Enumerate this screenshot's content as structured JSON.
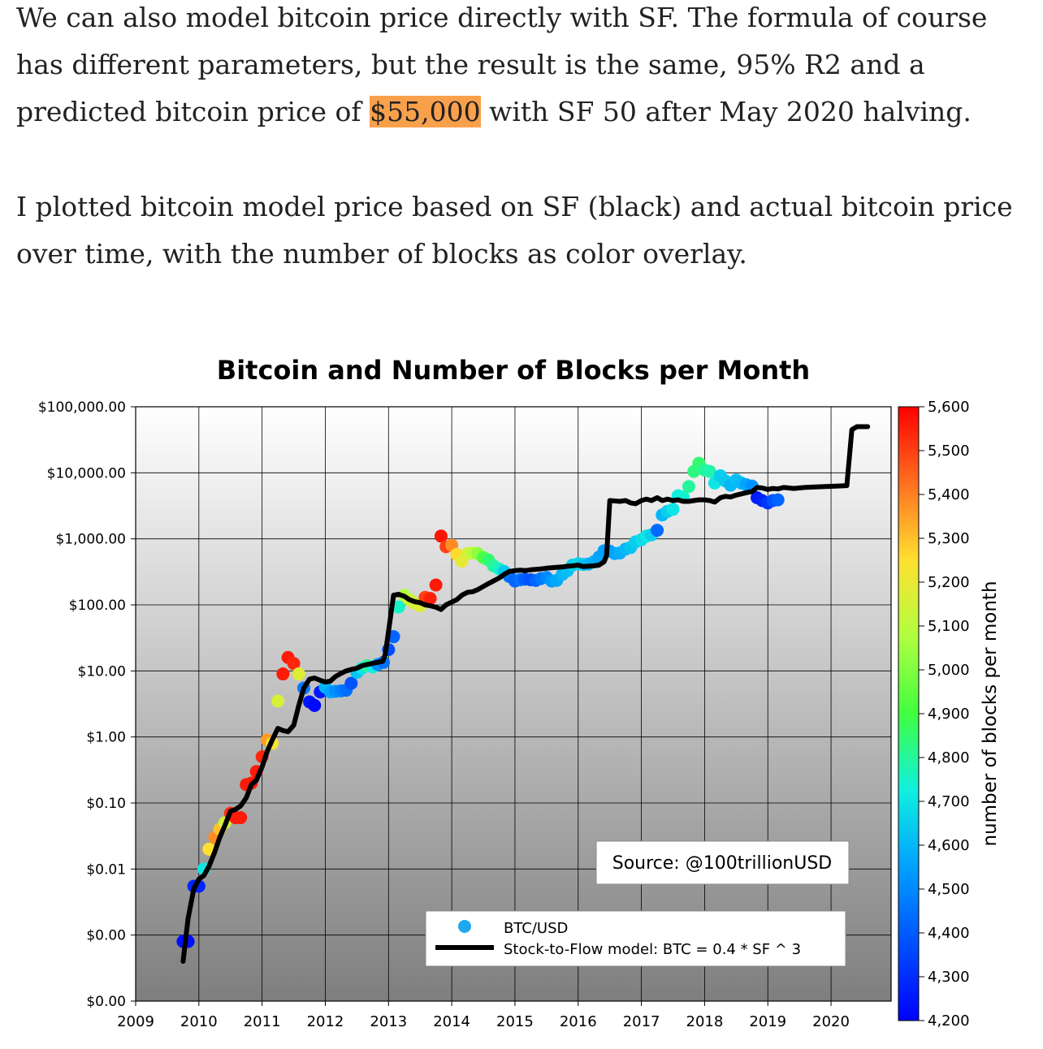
{
  "article": {
    "p1_before": "We can also model bitcoin price directly with SF. The formula of course has different parameters, but the result is the same, 95% R2 and a predicted bitcoin price of ",
    "p1_highlight": "$55,000",
    "p1_after": " with SF 50 after May 2020 halving.",
    "p2": "I plotted bitcoin model price based on SF (black) and actual bitcoin price over time, with the number of blocks as color overlay.",
    "highlight_color": "#f9a04b"
  },
  "chart_data": {
    "type": "scatter",
    "title": "Bitcoin and Number of Blocks per Month",
    "xlabel": "",
    "ylabel": "",
    "y_scale": "log",
    "ylim": [
      0.0001,
      100000
    ],
    "xlim": [
      2009,
      2020.95
    ],
    "x_ticks": [
      2009,
      2010,
      2011,
      2012,
      2013,
      2014,
      2015,
      2016,
      2017,
      2018,
      2019,
      2020
    ],
    "x_tick_labels": [
      "2009",
      "2010",
      "2011",
      "2012",
      "2013",
      "2014",
      "2015",
      "2016",
      "2017",
      "2018",
      "2019",
      "2020"
    ],
    "y_ticks": [
      0.0001,
      0.001,
      0.01,
      0.1,
      1,
      10,
      100,
      1000,
      10000,
      100000
    ],
    "y_tick_labels": [
      "$0.00",
      "$0.00",
      "$0.01",
      "$0.10",
      "$1.00",
      "$10.00",
      "$100.00",
      "$1,000.00",
      "$10,000.00",
      "$100,000.00"
    ],
    "grid": true,
    "legend_position": "bottom-right",
    "annotation": "Source: @100trillionUSD",
    "colorbar": {
      "label": "number of blocks per month",
      "range": [
        4200,
        5600
      ],
      "ticks": [
        4200,
        4300,
        4400,
        4500,
        4600,
        4700,
        4800,
        4900,
        5000,
        5100,
        5200,
        5300,
        5400,
        5500,
        5600
      ],
      "tick_labels": [
        "4,200",
        "4,300",
        "4,400",
        "4,500",
        "4,600",
        "4,700",
        "4,800",
        "4,900",
        "5,000",
        "5,100",
        "5,200",
        "5,300",
        "5,400",
        "5,500",
        "5,600"
      ],
      "colormap": "jet"
    },
    "series": [
      {
        "name": "BTC/USD",
        "marker": "circle",
        "legend_color": "#1fa8f0",
        "points": [
          {
            "x": 2009.75,
            "y": 0.0008,
            "c": 4230
          },
          {
            "x": 2009.83,
            "y": 0.0008,
            "c": 4230
          },
          {
            "x": 2009.92,
            "y": 0.0055,
            "c": 4280
          },
          {
            "x": 2010.0,
            "y": 0.0055,
            "c": 4280
          },
          {
            "x": 2010.08,
            "y": 0.01,
            "c": 4700
          },
          {
            "x": 2010.16,
            "y": 0.02,
            "c": 5250
          },
          {
            "x": 2010.25,
            "y": 0.03,
            "c": 5380
          },
          {
            "x": 2010.33,
            "y": 0.04,
            "c": 5300
          },
          {
            "x": 2010.41,
            "y": 0.05,
            "c": 5150
          },
          {
            "x": 2010.5,
            "y": 0.07,
            "c": 5530
          },
          {
            "x": 2010.58,
            "y": 0.06,
            "c": 5560
          },
          {
            "x": 2010.66,
            "y": 0.06,
            "c": 5560
          },
          {
            "x": 2010.75,
            "y": 0.19,
            "c": 5560
          },
          {
            "x": 2010.83,
            "y": 0.2,
            "c": 5560
          },
          {
            "x": 2010.91,
            "y": 0.3,
            "c": 5560
          },
          {
            "x": 2011.0,
            "y": 0.5,
            "c": 5540
          },
          {
            "x": 2011.08,
            "y": 0.9,
            "c": 5360
          },
          {
            "x": 2011.16,
            "y": 0.8,
            "c": 5220
          },
          {
            "x": 2011.25,
            "y": 3.5,
            "c": 5160
          },
          {
            "x": 2011.33,
            "y": 9,
            "c": 5560
          },
          {
            "x": 2011.41,
            "y": 16,
            "c": 5560
          },
          {
            "x": 2011.5,
            "y": 13,
            "c": 5540
          },
          {
            "x": 2011.58,
            "y": 9,
            "c": 5180
          },
          {
            "x": 2011.66,
            "y": 5.5,
            "c": 4470
          },
          {
            "x": 2011.75,
            "y": 3.4,
            "c": 4250
          },
          {
            "x": 2011.83,
            "y": 3.0,
            "c": 4220
          },
          {
            "x": 2011.92,
            "y": 4.8,
            "c": 4250
          },
          {
            "x": 2012.0,
            "y": 5.7,
            "c": 4600
          },
          {
            "x": 2012.08,
            "y": 4.8,
            "c": 4560
          },
          {
            "x": 2012.16,
            "y": 4.9,
            "c": 4520
          },
          {
            "x": 2012.25,
            "y": 5.0,
            "c": 4480
          },
          {
            "x": 2012.33,
            "y": 5.1,
            "c": 4440
          },
          {
            "x": 2012.41,
            "y": 6.5,
            "c": 4380
          },
          {
            "x": 2012.5,
            "y": 9.5,
            "c": 4630
          },
          {
            "x": 2012.58,
            "y": 11,
            "c": 4700
          },
          {
            "x": 2012.66,
            "y": 12,
            "c": 4800
          },
          {
            "x": 2012.75,
            "y": 11.5,
            "c": 4720
          },
          {
            "x": 2012.83,
            "y": 12.5,
            "c": 4520
          },
          {
            "x": 2012.92,
            "y": 13.5,
            "c": 4450
          },
          {
            "x": 2013.0,
            "y": 21,
            "c": 4370
          },
          {
            "x": 2013.08,
            "y": 33,
            "c": 4420
          },
          {
            "x": 2013.16,
            "y": 93,
            "c": 4750
          },
          {
            "x": 2013.25,
            "y": 140,
            "c": 5080
          },
          {
            "x": 2013.33,
            "y": 120,
            "c": 5120
          },
          {
            "x": 2013.41,
            "y": 107,
            "c": 5150
          },
          {
            "x": 2013.5,
            "y": 97,
            "c": 5180
          },
          {
            "x": 2013.58,
            "y": 130,
            "c": 5500
          },
          {
            "x": 2013.66,
            "y": 125,
            "c": 5550
          },
          {
            "x": 2013.75,
            "y": 200,
            "c": 5560
          },
          {
            "x": 2013.83,
            "y": 1100,
            "c": 5570
          },
          {
            "x": 2013.91,
            "y": 760,
            "c": 5500
          },
          {
            "x": 2014.0,
            "y": 800,
            "c": 5380
          },
          {
            "x": 2014.08,
            "y": 580,
            "c": 5260
          },
          {
            "x": 2014.16,
            "y": 460,
            "c": 5200
          },
          {
            "x": 2014.25,
            "y": 600,
            "c": 5150
          },
          {
            "x": 2014.33,
            "y": 610,
            "c": 5100
          },
          {
            "x": 2014.41,
            "y": 600,
            "c": 5020
          },
          {
            "x": 2014.5,
            "y": 520,
            "c": 4920
          },
          {
            "x": 2014.58,
            "y": 480,
            "c": 4850
          },
          {
            "x": 2014.66,
            "y": 390,
            "c": 4800
          },
          {
            "x": 2014.75,
            "y": 350,
            "c": 4750
          },
          {
            "x": 2014.83,
            "y": 320,
            "c": 4640
          },
          {
            "x": 2014.91,
            "y": 270,
            "c": 4450
          },
          {
            "x": 2015.0,
            "y": 230,
            "c": 4420
          },
          {
            "x": 2015.08,
            "y": 240,
            "c": 4450
          },
          {
            "x": 2015.16,
            "y": 245,
            "c": 4400
          },
          {
            "x": 2015.25,
            "y": 240,
            "c": 4380
          },
          {
            "x": 2015.33,
            "y": 235,
            "c": 4420
          },
          {
            "x": 2015.41,
            "y": 250,
            "c": 4460
          },
          {
            "x": 2015.5,
            "y": 260,
            "c": 4500
          },
          {
            "x": 2015.58,
            "y": 230,
            "c": 4540
          },
          {
            "x": 2015.66,
            "y": 235,
            "c": 4570
          },
          {
            "x": 2015.75,
            "y": 290,
            "c": 4600
          },
          {
            "x": 2015.83,
            "y": 330,
            "c": 4620
          },
          {
            "x": 2015.91,
            "y": 400,
            "c": 4650
          },
          {
            "x": 2016.0,
            "y": 420,
            "c": 4670
          },
          {
            "x": 2016.08,
            "y": 410,
            "c": 4620
          },
          {
            "x": 2016.16,
            "y": 415,
            "c": 4600
          },
          {
            "x": 2016.25,
            "y": 450,
            "c": 4580
          },
          {
            "x": 2016.33,
            "y": 530,
            "c": 4560
          },
          {
            "x": 2016.41,
            "y": 660,
            "c": 4550
          },
          {
            "x": 2016.5,
            "y": 650,
            "c": 4540
          },
          {
            "x": 2016.58,
            "y": 600,
            "c": 4560
          },
          {
            "x": 2016.66,
            "y": 610,
            "c": 4580
          },
          {
            "x": 2016.75,
            "y": 700,
            "c": 4600
          },
          {
            "x": 2016.83,
            "y": 740,
            "c": 4630
          },
          {
            "x": 2016.91,
            "y": 900,
            "c": 4650
          },
          {
            "x": 2017.0,
            "y": 970,
            "c": 4680
          },
          {
            "x": 2017.08,
            "y": 1100,
            "c": 4700
          },
          {
            "x": 2017.16,
            "y": 1150,
            "c": 4650
          },
          {
            "x": 2017.25,
            "y": 1350,
            "c": 4430
          },
          {
            "x": 2017.33,
            "y": 2300,
            "c": 4600
          },
          {
            "x": 2017.41,
            "y": 2600,
            "c": 4650
          },
          {
            "x": 2017.5,
            "y": 2800,
            "c": 4700
          },
          {
            "x": 2017.58,
            "y": 4500,
            "c": 4720
          },
          {
            "x": 2017.66,
            "y": 4300,
            "c": 4740
          },
          {
            "x": 2017.75,
            "y": 6200,
            "c": 4800
          },
          {
            "x": 2017.83,
            "y": 10500,
            "c": 4830
          },
          {
            "x": 2017.91,
            "y": 14000,
            "c": 4850
          },
          {
            "x": 2018.0,
            "y": 11000,
            "c": 4800
          },
          {
            "x": 2018.08,
            "y": 10500,
            "c": 4780
          },
          {
            "x": 2018.16,
            "y": 7000,
            "c": 4700
          },
          {
            "x": 2018.25,
            "y": 9000,
            "c": 4650
          },
          {
            "x": 2018.33,
            "y": 7500,
            "c": 4640
          },
          {
            "x": 2018.41,
            "y": 6500,
            "c": 4600
          },
          {
            "x": 2018.5,
            "y": 7800,
            "c": 4620
          },
          {
            "x": 2018.58,
            "y": 7000,
            "c": 4600
          },
          {
            "x": 2018.66,
            "y": 6600,
            "c": 4560
          },
          {
            "x": 2018.75,
            "y": 6300,
            "c": 4520
          },
          {
            "x": 2018.83,
            "y": 4200,
            "c": 4260
          },
          {
            "x": 2018.91,
            "y": 3800,
            "c": 4280
          },
          {
            "x": 2019.0,
            "y": 3500,
            "c": 4320
          },
          {
            "x": 2019.08,
            "y": 3800,
            "c": 4380
          },
          {
            "x": 2019.16,
            "y": 3900,
            "c": 4420
          }
        ]
      },
      {
        "name": "Stock-to-Flow model: BTC = 0.4 * SF ^ 3",
        "type": "line",
        "color": "#000000",
        "x": [
          2009.75,
          2009.83,
          2009.92,
          2010.0,
          2010.08,
          2010.16,
          2010.25,
          2010.33,
          2010.41,
          2010.5,
          2010.58,
          2010.66,
          2010.75,
          2010.83,
          2010.91,
          2011.0,
          2011.08,
          2011.16,
          2011.25,
          2011.33,
          2011.41,
          2011.5,
          2011.58,
          2011.66,
          2011.75,
          2011.83,
          2011.92,
          2012.0,
          2012.08,
          2012.16,
          2012.25,
          2012.33,
          2012.41,
          2012.5,
          2012.58,
          2012.66,
          2012.75,
          2012.83,
          2012.91,
          2012.95,
          2013.08,
          2013.16,
          2013.25,
          2013.33,
          2013.41,
          2013.5,
          2013.58,
          2013.66,
          2013.75,
          2013.83,
          2013.91,
          2014.0,
          2014.08,
          2014.16,
          2014.25,
          2014.33,
          2014.41,
          2014.5,
          2014.58,
          2014.66,
          2014.75,
          2014.83,
          2014.91,
          2015.0,
          2015.08,
          2015.16,
          2015.25,
          2015.33,
          2015.41,
          2015.5,
          2015.58,
          2015.66,
          2015.75,
          2015.83,
          2015.91,
          2016.0,
          2016.08,
          2016.16,
          2016.25,
          2016.33,
          2016.41,
          2016.45,
          2016.5,
          2016.58,
          2016.66,
          2016.75,
          2016.83,
          2016.91,
          2017.0,
          2017.08,
          2017.16,
          2017.25,
          2017.33,
          2017.41,
          2017.5,
          2017.58,
          2017.66,
          2017.75,
          2017.83,
          2017.91,
          2018.0,
          2018.08,
          2018.16,
          2018.25,
          2018.33,
          2018.41,
          2018.5,
          2018.58,
          2018.66,
          2018.75,
          2018.83,
          2018.91,
          2019.0,
          2019.08,
          2019.16,
          2019.25,
          2019.41,
          2019.58,
          2019.75,
          2019.91,
          2020.08,
          2020.25,
          2020.33,
          2020.41,
          2020.5,
          2020.58
        ],
        "y": [
          0.0004,
          0.0018,
          0.005,
          0.007,
          0.008,
          0.011,
          0.018,
          0.03,
          0.045,
          0.075,
          0.08,
          0.09,
          0.12,
          0.19,
          0.22,
          0.35,
          0.6,
          0.9,
          1.35,
          1.25,
          1.2,
          1.5,
          3.0,
          5.5,
          7.5,
          7.8,
          7.2,
          6.8,
          7.0,
          8.2,
          9.2,
          10.0,
          10.5,
          11.0,
          12.0,
          12.5,
          13.0,
          13.5,
          14.0,
          18,
          140,
          145,
          135,
          120,
          112,
          108,
          100,
          97,
          92,
          85,
          100,
          110,
          120,
          140,
          155,
          158,
          170,
          190,
          210,
          230,
          255,
          290,
          320,
          330,
          335,
          330,
          340,
          345,
          350,
          360,
          365,
          370,
          375,
          385,
          390,
          400,
          380,
          385,
          390,
          400,
          450,
          560,
          3800,
          3750,
          3700,
          3800,
          3500,
          3400,
          3800,
          4000,
          3800,
          4200,
          3800,
          4000,
          3800,
          3900,
          3700,
          3700,
          3800,
          3900,
          3900,
          3800,
          3600,
          4200,
          4400,
          4300,
          4600,
          4800,
          5000,
          5200,
          6000,
          5900,
          5600,
          5800,
          5700,
          6000,
          5800,
          6000,
          6100,
          6200,
          6300,
          6400,
          45000,
          50000,
          50000,
          50000
        ]
      }
    ]
  }
}
